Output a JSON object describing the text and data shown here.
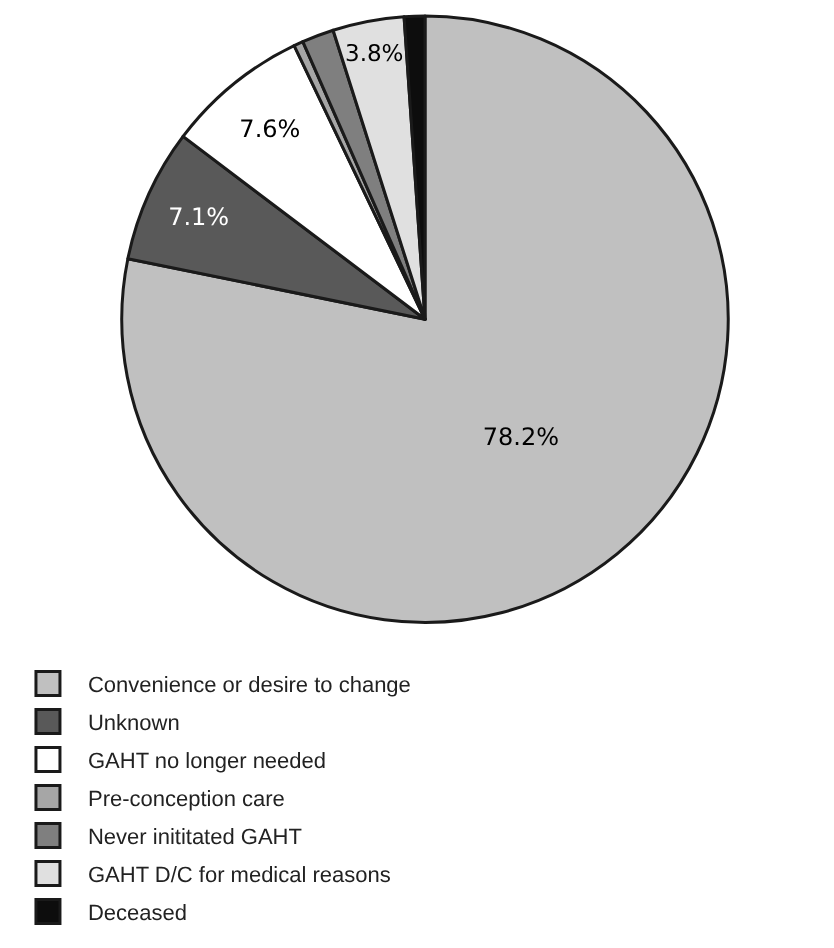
{
  "chart_data": {
    "type": "pie",
    "categories": [
      "Convenience or desire to change",
      "Unknown",
      "GAHT no longer needed",
      "Pre-conception care",
      "Never inititated GAHT",
      "GAHT D/C for medical reasons",
      "Deceased"
    ],
    "values": [
      78.2,
      7.1,
      7.6,
      0.5,
      1.7,
      3.8,
      1.1
    ],
    "colors": [
      "#c0c0c0",
      "#595959",
      "#ffffff",
      "#a6a6a6",
      "#7f7f7f",
      "#e0e0e0",
      "#0d0d0d"
    ],
    "value_labels": [
      "78.2%",
      "7.1%",
      "7.6%",
      null,
      null,
      "3.8%",
      null
    ],
    "legend": "bottom"
  }
}
